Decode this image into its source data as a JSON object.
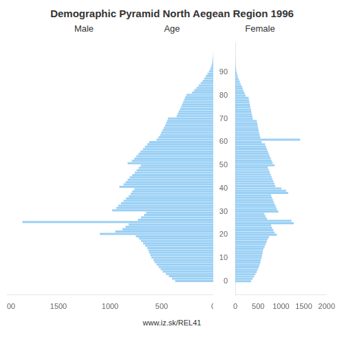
{
  "chart_data": {
    "type": "bar",
    "orientation": "horizontal",
    "title": "Demographic Pyramid North Aegean Region 1996",
    "ylabel": "Age",
    "annotation": "www.iz.sk/REL41",
    "y": [
      0,
      1,
      2,
      3,
      4,
      5,
      6,
      7,
      8,
      9,
      10,
      11,
      12,
      13,
      14,
      15,
      16,
      17,
      18,
      19,
      20,
      21,
      22,
      23,
      24,
      25,
      26,
      27,
      28,
      29,
      30,
      31,
      32,
      33,
      34,
      35,
      36,
      37,
      38,
      39,
      40,
      41,
      42,
      43,
      44,
      45,
      46,
      47,
      48,
      49,
      50,
      51,
      52,
      53,
      54,
      55,
      56,
      57,
      58,
      59,
      60,
      61,
      62,
      63,
      64,
      65,
      66,
      67,
      68,
      69,
      70,
      71,
      72,
      73,
      74,
      75,
      76,
      77,
      78,
      79,
      80,
      81,
      82,
      83,
      84,
      85,
      86,
      87,
      88,
      89,
      90,
      91,
      92,
      93,
      94,
      95,
      96,
      97
    ],
    "series": [
      {
        "name": "Male",
        "values": [
          370,
          400,
          430,
          460,
          490,
          510,
          530,
          550,
          570,
          580,
          600,
          610,
          620,
          630,
          640,
          660,
          680,
          700,
          720,
          750,
          1100,
          950,
          880,
          850,
          820,
          1850,
          730,
          700,
          670,
          650,
          980,
          940,
          920,
          895,
          870,
          845,
          820,
          800,
          785,
          765,
          910,
          870,
          850,
          830,
          810,
          785,
          762,
          742,
          722,
          702,
          830,
          790,
          765,
          745,
          725,
          705,
          682,
          662,
          640,
          620,
          550,
          530,
          515,
          505,
          492,
          480,
          468,
          458,
          448,
          440,
          355,
          345,
          335,
          322,
          312,
          302,
          292,
          282,
          272,
          262,
          205,
          185,
          162,
          142,
          122,
          102,
          87,
          72,
          57,
          42,
          30,
          22,
          15,
          10,
          6,
          4,
          2,
          1
        ]
      },
      {
        "name": "Female",
        "values": [
          345,
          375,
          410,
          440,
          468,
          490,
          512,
          530,
          548,
          558,
          575,
          585,
          595,
          605,
          618,
          645,
          668,
          688,
          708,
          738,
          910,
          862,
          832,
          808,
          785,
          1280,
          1230,
          695,
          662,
          638,
          942,
          912,
          892,
          868,
          845,
          825,
          805,
          785,
          1160,
          1110,
          1010,
          875,
          858,
          835,
          815,
          795,
          772,
          752,
          732,
          712,
          858,
          818,
          795,
          775,
          752,
          732,
          712,
          692,
          672,
          652,
          578,
          1420,
          548,
          535,
          522,
          512,
          502,
          492,
          482,
          472,
          385,
          375,
          362,
          352,
          342,
          332,
          320,
          312,
          302,
          292,
          225,
          205,
          182,
          162,
          142,
          118,
          98,
          78,
          58,
          44,
          32,
          21,
          14,
          9,
          5,
          3,
          2,
          1
        ]
      }
    ],
    "xlim": [
      0,
      2000
    ],
    "xticks": [
      0,
      500,
      1000,
      1500,
      2000
    ],
    "ylim": [
      -0.5,
      97.5
    ],
    "yticks": [
      0,
      10,
      20,
      30,
      40,
      50,
      60,
      70,
      80,
      90
    ],
    "grid": false
  }
}
